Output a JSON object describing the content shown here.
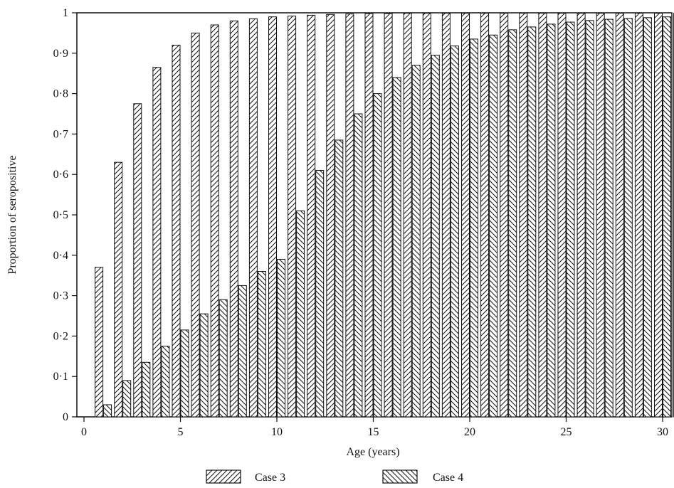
{
  "chart_data": {
    "type": "bar",
    "xlabel": "Age (years)",
    "ylabel": "Proportion of seropositive",
    "xlim": [
      0,
      30
    ],
    "ylim": [
      0,
      1
    ],
    "x_ticks": [
      0,
      5,
      10,
      15,
      20,
      25,
      30
    ],
    "x_tick_labels": [
      "0",
      "5",
      "10",
      "15",
      "20",
      "25",
      "30"
    ],
    "y_ticks": [
      0,
      0.1,
      0.2,
      0.3,
      0.4,
      0.5,
      0.6,
      0.7,
      0.8,
      0.9,
      1
    ],
    "y_tick_labels": [
      "0",
      "0·1",
      "0·2",
      "0·3",
      "0·4",
      "0·5",
      "0·6",
      "0·7",
      "0·8",
      "0·9",
      "1"
    ],
    "x": [
      1,
      2,
      3,
      4,
      5,
      6,
      7,
      8,
      9,
      10,
      11,
      12,
      13,
      14,
      15,
      16,
      17,
      18,
      19,
      20,
      21,
      22,
      23,
      24,
      25,
      26,
      27,
      28,
      29,
      30,
      31
    ],
    "series": [
      {
        "name": "Case 3",
        "hatch": "forward-diagonal",
        "values": [
          0.37,
          0.63,
          0.775,
          0.865,
          0.92,
          0.95,
          0.97,
          0.98,
          0.985,
          0.99,
          0.992,
          0.994,
          0.996,
          0.997,
          0.998,
          0.998,
          0.999,
          0.999,
          0.999,
          0.999,
          0.999,
          0.999,
          0.999,
          0.999,
          0.999,
          0.999,
          0.999,
          0.999,
          0.999,
          0.999,
          0.999
        ]
      },
      {
        "name": "Case 4",
        "hatch": "back-diagonal",
        "values": [
          0.03,
          0.09,
          0.135,
          0.175,
          0.215,
          0.255,
          0.29,
          0.325,
          0.36,
          0.39,
          0.51,
          0.61,
          0.685,
          0.75,
          0.8,
          0.84,
          0.87,
          0.895,
          0.918,
          0.935,
          0.945,
          0.958,
          0.965,
          0.972,
          0.977,
          0.981,
          0.984,
          0.986,
          0.988,
          0.99,
          0.99
        ]
      }
    ],
    "legend": [
      {
        "label": "Case 3",
        "hatch": "forward-diagonal"
      },
      {
        "label": "Case 4",
        "hatch": "back-diagonal"
      }
    ],
    "legend_placement": "bottom-center",
    "grid": false,
    "colors": {
      "stroke": "#111111",
      "fill": "#ffffff"
    }
  }
}
